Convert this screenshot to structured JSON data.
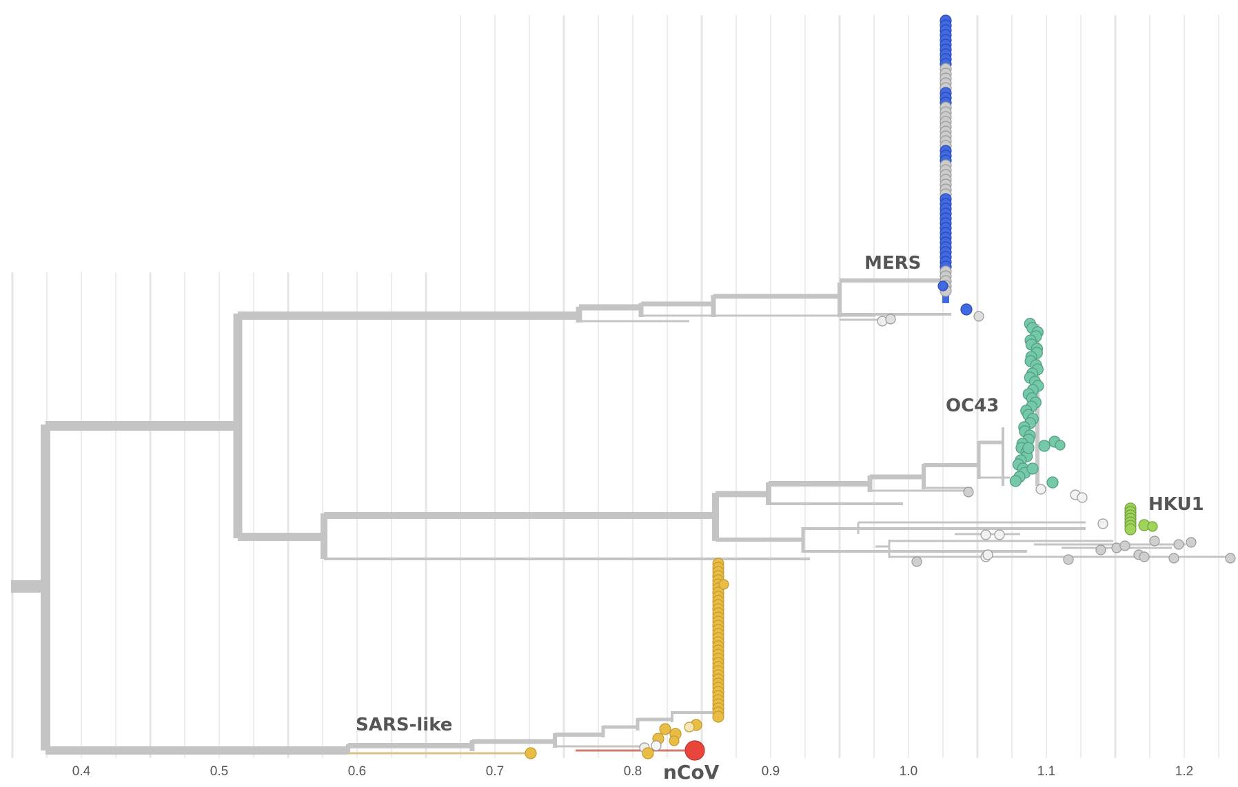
{
  "figure": {
    "kind": "phylogenetic-tree",
    "axis_ticks": [
      "0.4",
      "0.5",
      "0.6",
      "0.7",
      "0.8",
      "0.9",
      "1.0",
      "1.1",
      "1.2"
    ],
    "clade_labels": {
      "mers": "MERS",
      "oc43": "OC43",
      "hku1": "HKU1",
      "sars_like": "SARS-like",
      "ncov": "nCoV"
    },
    "colors": {
      "branch": "#c4c4c4",
      "grid": "#e6e6e6",
      "mers": "#4169e1",
      "oc43": "#75c9a8",
      "hku1": "#9fd35a",
      "sars_like": "#e8bc45",
      "ncov": "#e8453c",
      "other_tip": "#d0d0d0"
    }
  }
}
